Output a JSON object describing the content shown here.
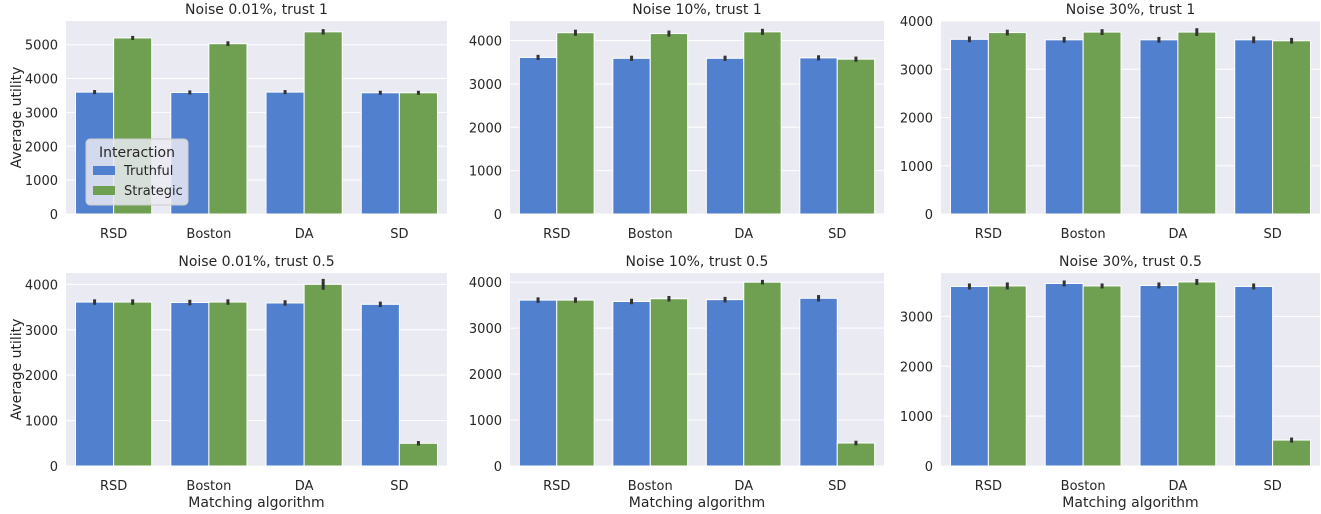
{
  "colors": {
    "background": "#eaeaf2",
    "grid": "#ffffff",
    "truthful": "#5180cf",
    "strategic": "#6fa052",
    "errorbar": "#333333"
  },
  "chart_data": [
    {
      "type": "bar",
      "title": "Noise 0.01%, trust 1",
      "categories": [
        "RSD",
        "Boston",
        "DA",
        "SD"
      ],
      "series": [
        {
          "name": "Truthful",
          "values": [
            3600,
            3590,
            3600,
            3580
          ],
          "errors": [
            60,
            60,
            60,
            60
          ]
        },
        {
          "name": "Strategic",
          "values": [
            5200,
            5030,
            5380,
            3580
          ],
          "errors": [
            60,
            70,
            80,
            60
          ]
        }
      ],
      "xlabel": "",
      "ylabel": "Average utility",
      "ylim": [
        0,
        5700
      ],
      "yticks": [
        0,
        1000,
        2000,
        3000,
        4000,
        5000
      ],
      "legend": {
        "title": "Interaction",
        "entries": [
          "Truthful",
          "Strategic"
        ],
        "placement": "center-left"
      }
    },
    {
      "type": "bar",
      "title": "Noise 10%, trust 1",
      "categories": [
        "RSD",
        "Boston",
        "DA",
        "SD"
      ],
      "series": [
        {
          "name": "Truthful",
          "values": [
            3610,
            3590,
            3590,
            3600
          ],
          "errors": [
            60,
            60,
            60,
            60
          ]
        },
        {
          "name": "Strategic",
          "values": [
            4180,
            4160,
            4200,
            3570
          ],
          "errors": [
            70,
            70,
            70,
            60
          ]
        }
      ],
      "xlabel": "",
      "ylabel": "",
      "ylim": [
        0,
        4450
      ],
      "yticks": [
        0,
        1000,
        2000,
        3000,
        4000
      ]
    },
    {
      "type": "bar",
      "title": "Noise 30%, trust 1",
      "categories": [
        "RSD",
        "Boston",
        "DA",
        "SD"
      ],
      "series": [
        {
          "name": "Truthful",
          "values": [
            3620,
            3610,
            3610,
            3610
          ],
          "errors": [
            60,
            60,
            60,
            70
          ]
        },
        {
          "name": "Strategic",
          "values": [
            3760,
            3770,
            3770,
            3590
          ],
          "errors": [
            60,
            60,
            80,
            60
          ]
        }
      ],
      "xlabel": "",
      "ylabel": "",
      "ylim": [
        0,
        4000
      ],
      "yticks": [
        0,
        1000,
        2000,
        3000,
        4000
      ]
    },
    {
      "type": "bar",
      "title": "Noise 0.01%, trust 0.5",
      "categories": [
        "RSD",
        "Boston",
        "DA",
        "SD"
      ],
      "series": [
        {
          "name": "Truthful",
          "values": [
            3610,
            3600,
            3590,
            3560
          ],
          "errors": [
            60,
            60,
            60,
            60
          ]
        },
        {
          "name": "Strategic",
          "values": [
            3610,
            3610,
            4000,
            500
          ],
          "errors": [
            60,
            60,
            120,
            50
          ]
        }
      ],
      "xlabel": "Matching algorithm",
      "ylabel": "Average utility",
      "ylim": [
        0,
        4250
      ],
      "yticks": [
        0,
        1000,
        2000,
        3000,
        4000
      ]
    },
    {
      "type": "bar",
      "title": "Noise 10%, trust 0.5",
      "categories": [
        "RSD",
        "Boston",
        "DA",
        "SD"
      ],
      "series": [
        {
          "name": "Truthful",
          "values": [
            3610,
            3580,
            3620,
            3650
          ],
          "errors": [
            60,
            60,
            60,
            70
          ]
        },
        {
          "name": "Strategic",
          "values": [
            3610,
            3640,
            4000,
            500
          ],
          "errors": [
            60,
            60,
            50,
            50
          ]
        }
      ],
      "xlabel": "Matching algorithm",
      "ylabel": "",
      "ylim": [
        0,
        4200
      ],
      "yticks": [
        0,
        1000,
        2000,
        3000,
        4000
      ]
    },
    {
      "type": "bar",
      "title": "Noise 30%, trust 0.5",
      "categories": [
        "RSD",
        "Boston",
        "DA",
        "SD"
      ],
      "series": [
        {
          "name": "Truthful",
          "values": [
            3600,
            3660,
            3620,
            3600
          ],
          "errors": [
            60,
            60,
            60,
            60
          ]
        },
        {
          "name": "Strategic",
          "values": [
            3610,
            3610,
            3690,
            520
          ],
          "errors": [
            70,
            50,
            60,
            50
          ]
        }
      ],
      "xlabel": "Matching algorithm",
      "ylabel": "",
      "ylim": [
        0,
        3870
      ],
      "yticks": [
        0,
        1000,
        2000,
        3000
      ]
    }
  ]
}
